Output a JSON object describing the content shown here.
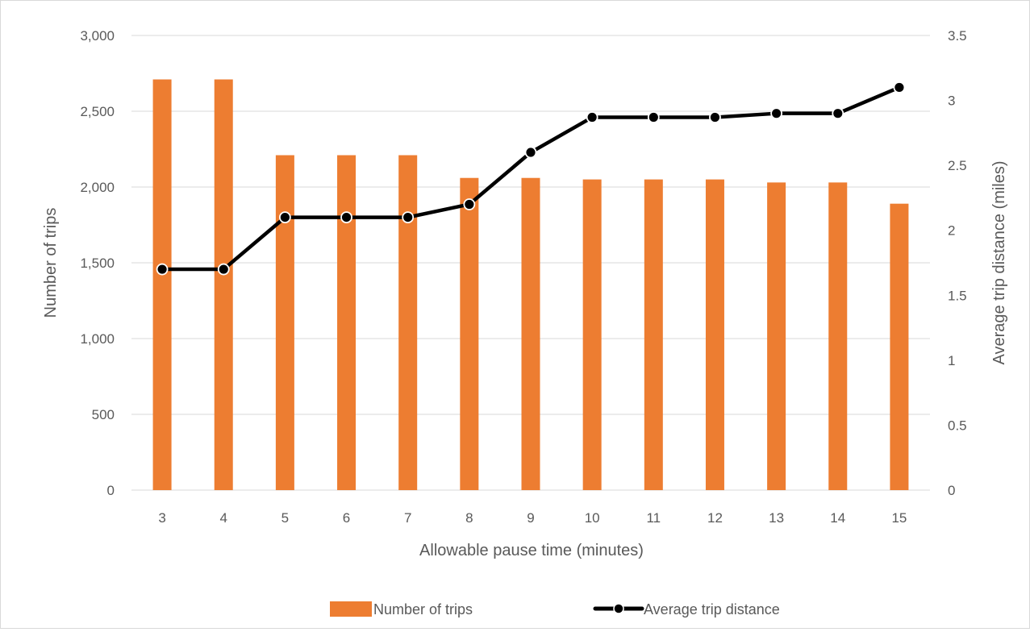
{
  "chart_data": {
    "type": "bar+line",
    "categories": [
      "3",
      "4",
      "5",
      "6",
      "7",
      "8",
      "9",
      "10",
      "11",
      "12",
      "13",
      "14",
      "15"
    ],
    "series": [
      {
        "name": "Number of trips",
        "type": "bar",
        "axis": "left",
        "color": "#ed7d31",
        "values": [
          2710,
          2710,
          2210,
          2210,
          2210,
          2060,
          2060,
          2050,
          2050,
          2050,
          2030,
          2030,
          1890
        ]
      },
      {
        "name": "Average trip distance",
        "type": "line",
        "axis": "right",
        "color": "#000000",
        "values": [
          1.7,
          1.7,
          2.1,
          2.1,
          2.1,
          2.2,
          2.6,
          2.87,
          2.87,
          2.87,
          2.9,
          2.9,
          3.1
        ]
      }
    ],
    "xlabel": "Allowable pause time (minutes)",
    "ylabel": "Number of trips",
    "y2label": "Average trip distance (miles)",
    "ylim": [
      0,
      3000
    ],
    "y2lim": [
      0,
      3.5
    ],
    "yticks": [
      "0",
      "500",
      "1,000",
      "1,500",
      "2,000",
      "2,500",
      "3,000"
    ],
    "y2ticks": [
      "0",
      "0.5",
      "1",
      "1.5",
      "2",
      "2.5",
      "3",
      "3.5"
    ],
    "grid": true,
    "legend": "bottom"
  }
}
